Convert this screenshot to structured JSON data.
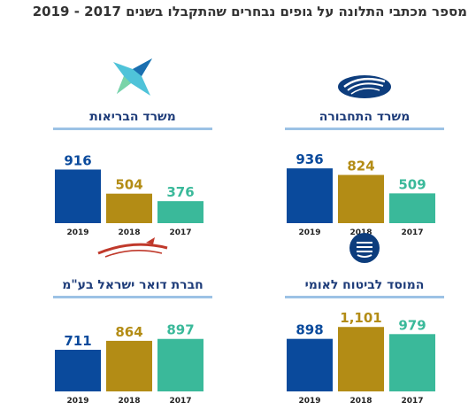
{
  "title": "מספר מכתבי התלונה על גופים נבחרים שהתקבלו בשנים 2017 - 2019",
  "colors": {
    "year2019": "#0a4a9c",
    "year2018": "#b38c15",
    "year2017": "#3ab99a",
    "rule": "#9cc2e5",
    "panel_title": "#1f3d7a"
  },
  "chart_data": [
    {
      "type": "bar",
      "title": "משרד הבריאות",
      "icon": "star-logo-icon",
      "categories": [
        "2019",
        "2018",
        "2017"
      ],
      "values": [
        916,
        504,
        376
      ],
      "value_labels": [
        "916",
        "504",
        "376"
      ]
    },
    {
      "type": "bar",
      "title": "משרד התחבורה",
      "icon": "wave-emblem-icon",
      "categories": [
        "2019",
        "2018",
        "2017"
      ],
      "values": [
        936,
        824,
        509
      ],
      "value_labels": [
        "936",
        "824",
        "509"
      ]
    },
    {
      "type": "bar",
      "title": "חברת דואר ישראל בע\"מ",
      "icon": "postal-logo-icon",
      "categories": [
        "2019",
        "2018",
        "2017"
      ],
      "values": [
        711,
        864,
        897
      ],
      "value_labels": [
        "711",
        "864",
        "897"
      ]
    },
    {
      "type": "bar",
      "title": "המוסד לביטוח לאומי",
      "icon": "insurance-emblem-icon",
      "categories": [
        "2019",
        "2018",
        "2017"
      ],
      "values": [
        898,
        1101,
        979
      ],
      "value_labels": [
        "898",
        "1,101",
        "979"
      ]
    }
  ]
}
